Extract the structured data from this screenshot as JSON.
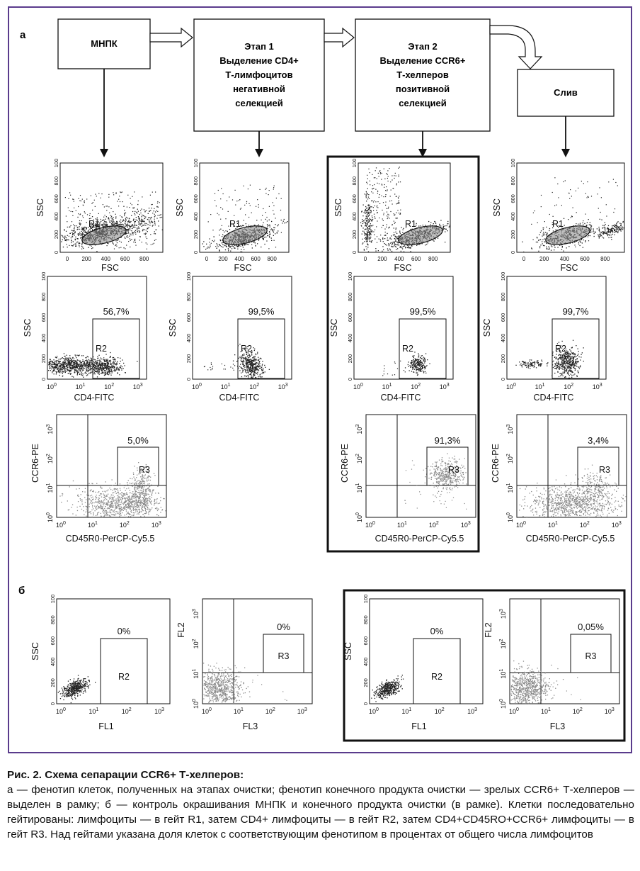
{
  "panel_labels": {
    "a": "а",
    "b": "б"
  },
  "boxes": {
    "mnpk": [
      "МНПК"
    ],
    "stage1": [
      "Этап 1",
      "Выделение CD4+",
      "Т-лимфоцитов",
      "негативной",
      "селекцией"
    ],
    "stage2": [
      "Этап 2",
      "Выделение CCR6+",
      "Т-хелперов",
      "позитивной",
      "селекцией"
    ],
    "sliv": [
      "Слив"
    ]
  },
  "scatter_axes": {
    "ssc": "SSC",
    "fsc": "FSC",
    "cd4": "CD4-FITC",
    "ccr6": "CCR6-PE",
    "cd45": "CD45R0-PerCP-Cy5.5",
    "fl1": "FL1",
    "fl2": "FL2",
    "fl3": "FL3",
    "lin_x": [
      "0",
      "200",
      "400",
      "600",
      "800"
    ],
    "lin_y": [
      "0",
      "200",
      "400",
      "600",
      "800",
      "100"
    ],
    "log_exp": [
      "0",
      "1",
      "2",
      "3"
    ],
    "log_base": "10"
  },
  "gates": {
    "r1": "R1",
    "r2": "R2",
    "r3": "R3"
  },
  "percentages": {
    "r2": [
      "56,7%",
      "99,5%",
      "99,5%",
      "99,7%"
    ],
    "r3": [
      "5,0%",
      "91,3%",
      "3,4%"
    ],
    "ctrl": [
      "0%",
      "0%",
      "0%",
      "0,05%"
    ]
  },
  "caption": {
    "title": "Рис. 2. Схема сепарации CCR6+ Т-хелперов:",
    "body": "а — фенотип клеток, полученных на этапах очистки; фенотип конечного продукта очистки — зрелых CCR6+ Т-хелперов — выделен в рамку; б — контроль окрашивания МНПК и конечного продукта очистки (в рамке). Клетки последовательно гейтированы: лимфоциты — в гейт R1, затем CD4+ лимфоциты — в гейт R2, затем CD4+CD45RO+CCR6+ лимфоциты — в гейт R3. Над гейтами указана доля клеток с соответствующим фенотипом в процентах от общего числа лимфоцитов"
  },
  "colors": {
    "frame": "#5a3b8c",
    "dots": "#222222",
    "grey_dots": "#8a8a8a"
  }
}
